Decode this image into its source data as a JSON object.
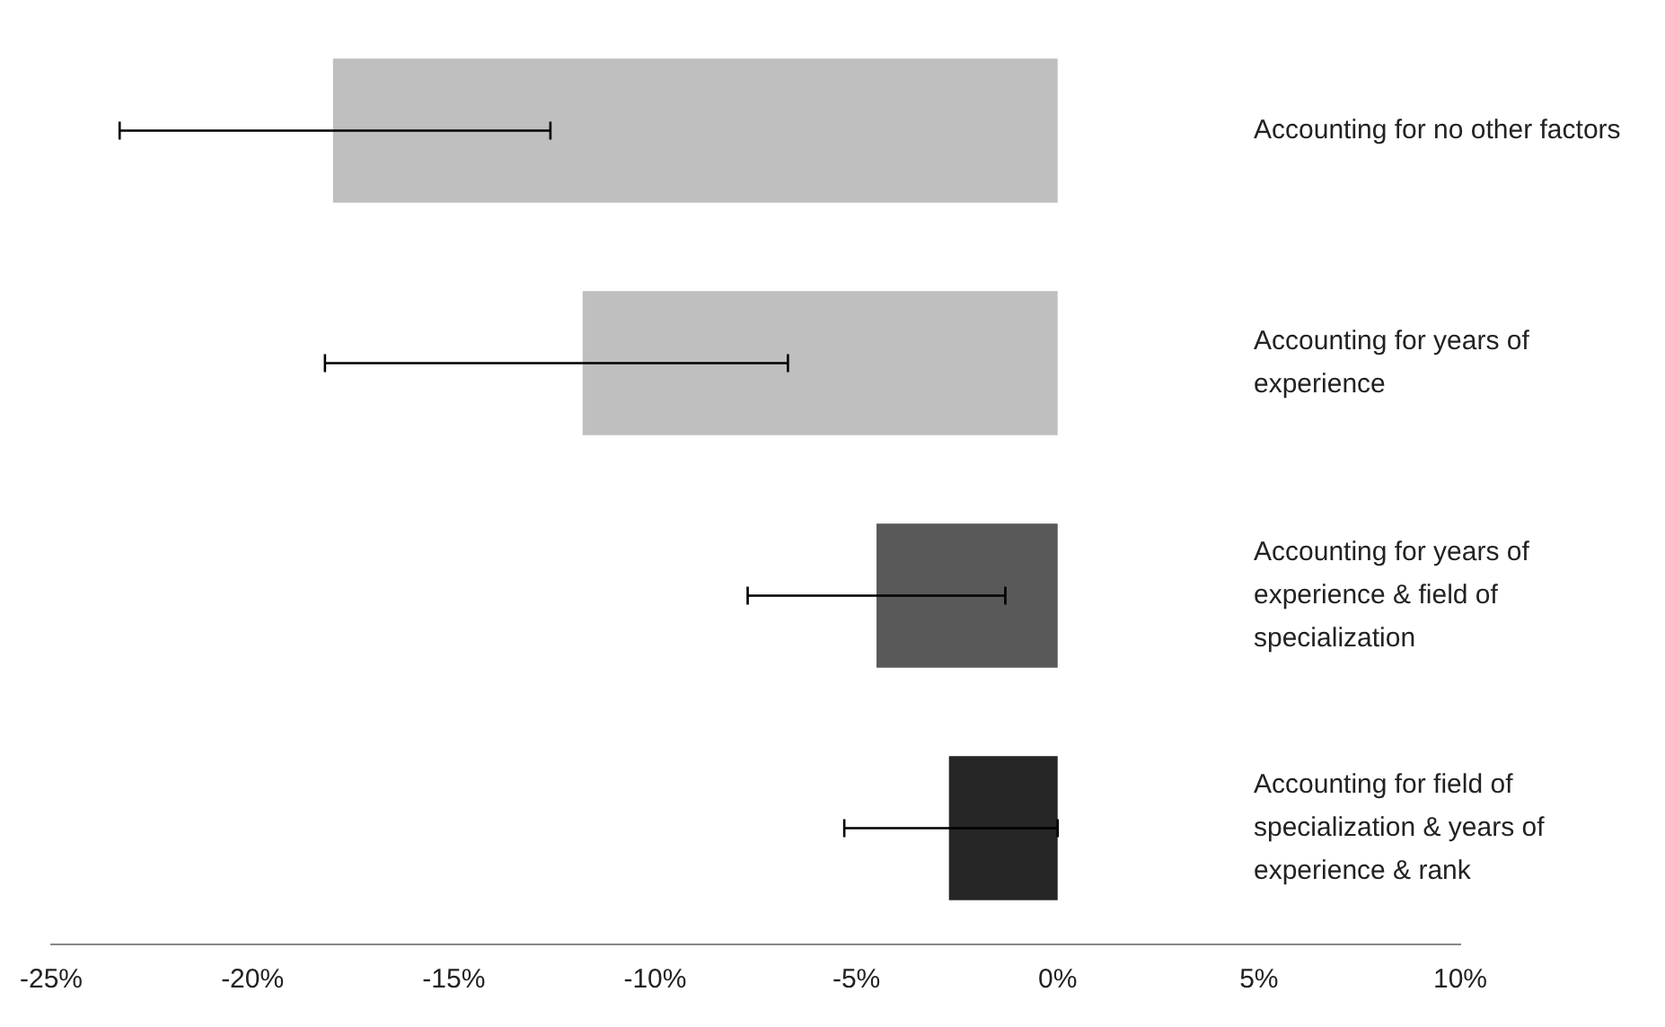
{
  "chart_data": {
    "type": "bar",
    "orientation": "horizontal",
    "categories": [
      "Accounting for no other factors",
      "Accounting for years of experience",
      "Accounting for years of experience & field of specialization",
      "Accounting for field of specialization & years of experience & rank"
    ],
    "values": [
      -18.0,
      -11.8,
      -4.5,
      -2.7
    ],
    "colors": [
      "#bfbfbf",
      "#bfbfbf",
      "#595959",
      "#262626"
    ],
    "errors": [
      [
        -23.3,
        -12.6
      ],
      [
        -18.2,
        -6.7
      ],
      [
        -7.7,
        -1.3
      ],
      [
        -5.3,
        0
      ]
    ],
    "xlim": [
      -25,
      10
    ],
    "xticks": [
      {
        "value": -25,
        "label": "-25%"
      },
      {
        "value": -20,
        "label": "-20%"
      },
      {
        "value": -15,
        "label": "-15%"
      },
      {
        "value": -10,
        "label": "-10%"
      },
      {
        "value": -5,
        "label": "-5%"
      },
      {
        "value": 0,
        "label": "0%"
      },
      {
        "value": 5,
        "label": "5%"
      },
      {
        "value": 10,
        "label": "10%"
      }
    ],
    "grid": false,
    "legend": false
  }
}
